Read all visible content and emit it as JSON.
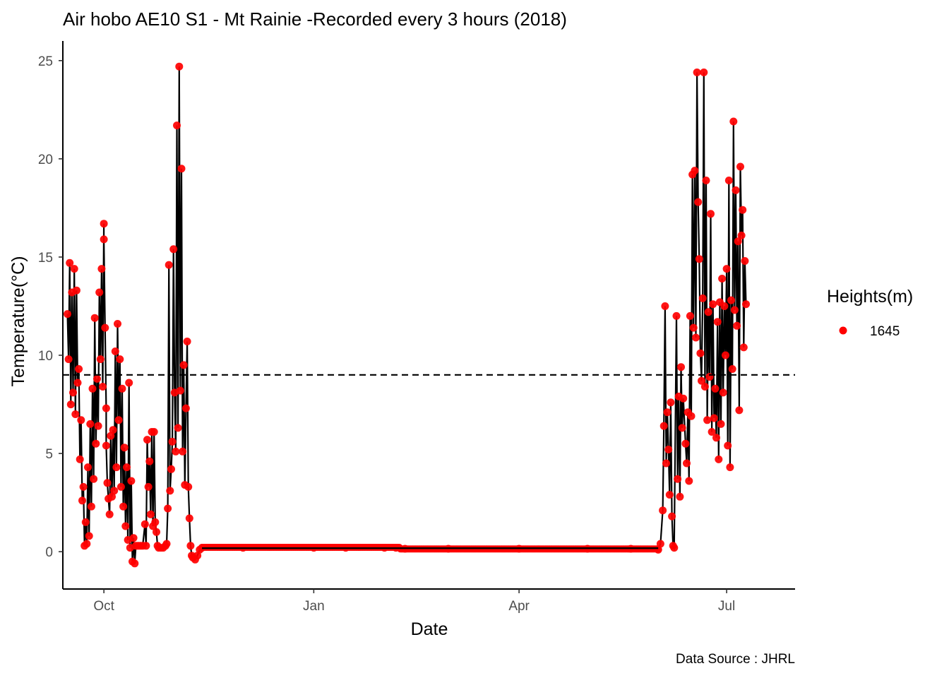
{
  "chart_data": {
    "type": "line",
    "title": "Air hobo AE10 S1 -  Mt Rainie -Recorded every 3 hours (2018)",
    "xlabel": "Date",
    "ylabel": "Temperature(°C)",
    "caption": "Data Source : JHRL",
    "x_axis": {
      "type": "date",
      "range": [
        "2017-09-13",
        "2018-07-31"
      ],
      "ticks": [
        {
          "date": "2017-10-01",
          "label": "Oct"
        },
        {
          "date": "2018-01-01",
          "label": "Jan"
        },
        {
          "date": "2018-04-01",
          "label": "Apr"
        },
        {
          "date": "2018-07-01",
          "label": "Jul"
        }
      ]
    },
    "y_axis": {
      "range": [
        -1.9,
        26.0
      ],
      "ticks": [
        0,
        5,
        10,
        15,
        20,
        25
      ]
    },
    "reference_line": {
      "y": 9.0,
      "style": "dashed",
      "color": "#000000"
    },
    "grid": false,
    "legend": {
      "title": "Heights(m)",
      "placement": "right",
      "entries": [
        {
          "label": "1645",
          "color": "#ff0000"
        }
      ]
    },
    "series": [
      {
        "name": "1645",
        "marker_color": "#ff0000",
        "line_color": "#000000",
        "points": [
          [
            "2017-09-15",
            12.1
          ],
          [
            "2017-09-15",
            9.8
          ],
          [
            "2017-09-16",
            14.7
          ],
          [
            "2017-09-16",
            7.5
          ],
          [
            "2017-09-17",
            13.2
          ],
          [
            "2017-09-17",
            8.1
          ],
          [
            "2017-09-18",
            14.4
          ],
          [
            "2017-09-18",
            7.0
          ],
          [
            "2017-09-19",
            13.3
          ],
          [
            "2017-09-19",
            8.6
          ],
          [
            "2017-09-20",
            9.3
          ],
          [
            "2017-09-20",
            4.7
          ],
          [
            "2017-09-21",
            6.7
          ],
          [
            "2017-09-21",
            2.6
          ],
          [
            "2017-09-22",
            3.3
          ],
          [
            "2017-09-22",
            0.3
          ],
          [
            "2017-09-23",
            1.5
          ],
          [
            "2017-09-23",
            0.4
          ],
          [
            "2017-09-24",
            4.3
          ],
          [
            "2017-09-24",
            0.8
          ],
          [
            "2017-09-25",
            6.5
          ],
          [
            "2017-09-25",
            2.3
          ],
          [
            "2017-09-26",
            8.3
          ],
          [
            "2017-09-26",
            3.7
          ],
          [
            "2017-09-27",
            11.9
          ],
          [
            "2017-09-27",
            5.5
          ],
          [
            "2017-09-28",
            8.8
          ],
          [
            "2017-09-28",
            6.4
          ],
          [
            "2017-09-29",
            13.2
          ],
          [
            "2017-09-29",
            9.8
          ],
          [
            "2017-09-30",
            14.4
          ],
          [
            "2017-09-30",
            8.4
          ],
          [
            "2017-09-30",
            16.7
          ],
          [
            "2017-10-01",
            15.9
          ],
          [
            "2017-10-01",
            11.4
          ],
          [
            "2017-10-01",
            7.3
          ],
          [
            "2017-10-02",
            5.4
          ],
          [
            "2017-10-02",
            3.5
          ],
          [
            "2017-10-03",
            2.7
          ],
          [
            "2017-10-03",
            1.9
          ],
          [
            "2017-10-04",
            5.9
          ],
          [
            "2017-10-04",
            2.8
          ],
          [
            "2017-10-05",
            6.2
          ],
          [
            "2017-10-05",
            3.1
          ],
          [
            "2017-10-06",
            10.2
          ],
          [
            "2017-10-06",
            4.3
          ],
          [
            "2017-10-07",
            11.6
          ],
          [
            "2017-10-07",
            6.7
          ],
          [
            "2017-10-08",
            9.8
          ],
          [
            "2017-10-08",
            3.3
          ],
          [
            "2017-10-09",
            8.3
          ],
          [
            "2017-10-09",
            2.3
          ],
          [
            "2017-10-10",
            5.3
          ],
          [
            "2017-10-10",
            1.3
          ],
          [
            "2017-10-11",
            4.3
          ],
          [
            "2017-10-11",
            0.6
          ],
          [
            "2017-10-12",
            8.6
          ],
          [
            "2017-10-12",
            0.2
          ],
          [
            "2017-10-13",
            3.6
          ],
          [
            "2017-10-13",
            -0.5
          ],
          [
            "2017-10-14",
            0.7
          ],
          [
            "2017-10-14",
            -0.6
          ],
          [
            "2017-10-15",
            0.3
          ],
          [
            "2017-10-16",
            0.3
          ],
          [
            "2017-10-17",
            0.3
          ],
          [
            "2017-10-18",
            0.3
          ],
          [
            "2017-10-19",
            1.4
          ],
          [
            "2017-10-19",
            0.3
          ],
          [
            "2017-10-20",
            5.7
          ],
          [
            "2017-10-20",
            3.3
          ],
          [
            "2017-10-21",
            4.6
          ],
          [
            "2017-10-21",
            1.9
          ],
          [
            "2017-10-22",
            6.1
          ],
          [
            "2017-10-22",
            1.3
          ],
          [
            "2017-10-23",
            6.1
          ],
          [
            "2017-10-23",
            1.5
          ],
          [
            "2017-10-24",
            1.0
          ],
          [
            "2017-10-24",
            0.3
          ],
          [
            "2017-10-25",
            0.2
          ],
          [
            "2017-10-26",
            0.2
          ],
          [
            "2017-10-27",
            0.2
          ],
          [
            "2017-10-28",
            0.3
          ],
          [
            "2017-10-28",
            0.4
          ],
          [
            "2017-10-29",
            2.2
          ],
          [
            "2017-10-29",
            14.6
          ],
          [
            "2017-10-30",
            3.1
          ],
          [
            "2017-10-30",
            4.2
          ],
          [
            "2017-10-31",
            5.6
          ],
          [
            "2017-10-31",
            15.4
          ],
          [
            "2017-11-01",
            8.1
          ],
          [
            "2017-11-01",
            5.1
          ],
          [
            "2017-11-02",
            21.7
          ],
          [
            "2017-11-02",
            6.3
          ],
          [
            "2017-11-03",
            24.7
          ],
          [
            "2017-11-03",
            8.2
          ],
          [
            "2017-11-04",
            19.5
          ],
          [
            "2017-11-04",
            5.1
          ],
          [
            "2017-11-05",
            9.5
          ],
          [
            "2017-11-05",
            3.4
          ],
          [
            "2017-11-06",
            7.3
          ],
          [
            "2017-11-06",
            10.7
          ],
          [
            "2017-11-07",
            3.3
          ],
          [
            "2017-11-07",
            1.7
          ],
          [
            "2017-11-08",
            0.3
          ],
          [
            "2017-11-08",
            -0.2
          ],
          [
            "2017-11-09",
            -0.3
          ],
          [
            "2017-11-10",
            -0.4
          ],
          [
            "2017-11-11",
            -0.2
          ],
          [
            "2017-11-12",
            0.1
          ],
          [
            "2017-11-13",
            0.2
          ],
          [
            "2017-12-01",
            0.2
          ],
          [
            "2018-01-01",
            0.2
          ],
          [
            "2018-01-15",
            0.2
          ],
          [
            "2018-02-01",
            0.2
          ],
          [
            "2018-02-06",
            0.2
          ],
          [
            "2018-02-10",
            0.15
          ],
          [
            "2018-03-01",
            0.15
          ],
          [
            "2018-04-01",
            0.15
          ],
          [
            "2018-05-01",
            0.15
          ],
          [
            "2018-05-20",
            0.15
          ],
          [
            "2018-06-01",
            0.1
          ],
          [
            "2018-06-02",
            0.4
          ],
          [
            "2018-06-03",
            2.1
          ],
          [
            "2018-06-03",
            6.4
          ],
          [
            "2018-06-04",
            12.5
          ],
          [
            "2018-06-04",
            4.5
          ],
          [
            "2018-06-05",
            7.1
          ],
          [
            "2018-06-05",
            5.2
          ],
          [
            "2018-06-06",
            2.9
          ],
          [
            "2018-06-06",
            7.6
          ],
          [
            "2018-06-07",
            1.8
          ],
          [
            "2018-06-07",
            0.3
          ],
          [
            "2018-06-08",
            0.2
          ],
          [
            "2018-06-09",
            12.0
          ],
          [
            "2018-06-09",
            3.7
          ],
          [
            "2018-06-10",
            7.9
          ],
          [
            "2018-06-10",
            2.8
          ],
          [
            "2018-06-11",
            9.4
          ],
          [
            "2018-06-11",
            6.3
          ],
          [
            "2018-06-12",
            7.8
          ],
          [
            "2018-06-13",
            5.5
          ],
          [
            "2018-06-13",
            4.5
          ],
          [
            "2018-06-14",
            7.1
          ],
          [
            "2018-06-14",
            3.6
          ],
          [
            "2018-06-15",
            12.0
          ],
          [
            "2018-06-15",
            6.9
          ],
          [
            "2018-06-16",
            19.2
          ],
          [
            "2018-06-16",
            11.4
          ],
          [
            "2018-06-17",
            19.4
          ],
          [
            "2018-06-17",
            10.9
          ],
          [
            "2018-06-18",
            24.4
          ],
          [
            "2018-06-18",
            17.8
          ],
          [
            "2018-06-19",
            14.9
          ],
          [
            "2018-06-19",
            10.1
          ],
          [
            "2018-06-20",
            8.7
          ],
          [
            "2018-06-20",
            12.9
          ],
          [
            "2018-06-21",
            24.4
          ],
          [
            "2018-06-21",
            8.4
          ],
          [
            "2018-06-22",
            18.9
          ],
          [
            "2018-06-22",
            6.7
          ],
          [
            "2018-06-23",
            12.2
          ],
          [
            "2018-06-23",
            8.9
          ],
          [
            "2018-06-24",
            17.2
          ],
          [
            "2018-06-24",
            6.1
          ],
          [
            "2018-06-25",
            12.6
          ],
          [
            "2018-06-25",
            6.8
          ],
          [
            "2018-06-26",
            8.3
          ],
          [
            "2018-06-26",
            5.8
          ],
          [
            "2018-06-27",
            11.7
          ],
          [
            "2018-06-27",
            4.7
          ],
          [
            "2018-06-28",
            12.7
          ],
          [
            "2018-06-28",
            6.5
          ],
          [
            "2018-06-29",
            13.9
          ],
          [
            "2018-06-29",
            8.1
          ],
          [
            "2018-06-30",
            12.5
          ],
          [
            "2018-06-30",
            10.0
          ],
          [
            "2018-07-01",
            14.4
          ],
          [
            "2018-07-01",
            5.4
          ],
          [
            "2018-07-02",
            18.9
          ],
          [
            "2018-07-02",
            4.3
          ],
          [
            "2018-07-03",
            12.8
          ],
          [
            "2018-07-03",
            9.3
          ],
          [
            "2018-07-04",
            21.9
          ],
          [
            "2018-07-04",
            12.3
          ],
          [
            "2018-07-05",
            18.4
          ],
          [
            "2018-07-05",
            11.5
          ],
          [
            "2018-07-06",
            15.8
          ],
          [
            "2018-07-06",
            7.2
          ],
          [
            "2018-07-07",
            19.6
          ],
          [
            "2018-07-07",
            16.1
          ],
          [
            "2018-07-08",
            17.4
          ],
          [
            "2018-07-08",
            10.4
          ],
          [
            "2018-07-09",
            14.8
          ],
          [
            "2018-07-09",
            12.6
          ]
        ]
      }
    ]
  }
}
